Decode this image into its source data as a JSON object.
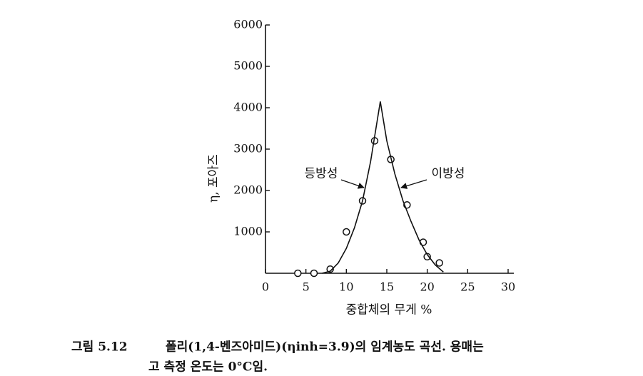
{
  "chart_data": {
    "type": "scatter",
    "xlabel": "중합체의 무게 %",
    "ylabel": "η, 포아즈",
    "xlim": [
      0,
      30
    ],
    "xticks": [
      0,
      5,
      10,
      15,
      20,
      25,
      30
    ],
    "ylim": [
      0,
      6000
    ],
    "yticks": [
      1000,
      2000,
      3000,
      4000,
      5000,
      6000
    ],
    "color": "#111111",
    "series": [
      {
        "type": "scatter",
        "x": [
          4,
          6,
          8,
          10,
          12,
          13.5,
          15.5,
          17.5,
          19.5,
          20,
          21.5
        ],
        "values": [
          0,
          0,
          100,
          1000,
          1750,
          3200,
          2750,
          1650,
          750,
          400,
          250
        ]
      },
      {
        "type": "line",
        "x": [
          7,
          8,
          9,
          10,
          11,
          12,
          13,
          14.2,
          15,
          16,
          17,
          18,
          19,
          20,
          21,
          22
        ],
        "values": [
          0,
          50,
          250,
          600,
          1100,
          1750,
          2700,
          4150,
          3200,
          2400,
          1750,
          1250,
          800,
          450,
          200,
          30
        ]
      }
    ],
    "annotations": [
      "등방성",
      "이방성"
    ],
    "caption": [
      "그림 5.12",
      "폴리(1,4-벤즈아미드)(ηinh=3.9)의 임계농도 곡선.  용매는",
      "고 측정 온도는 0°C임."
    ]
  }
}
